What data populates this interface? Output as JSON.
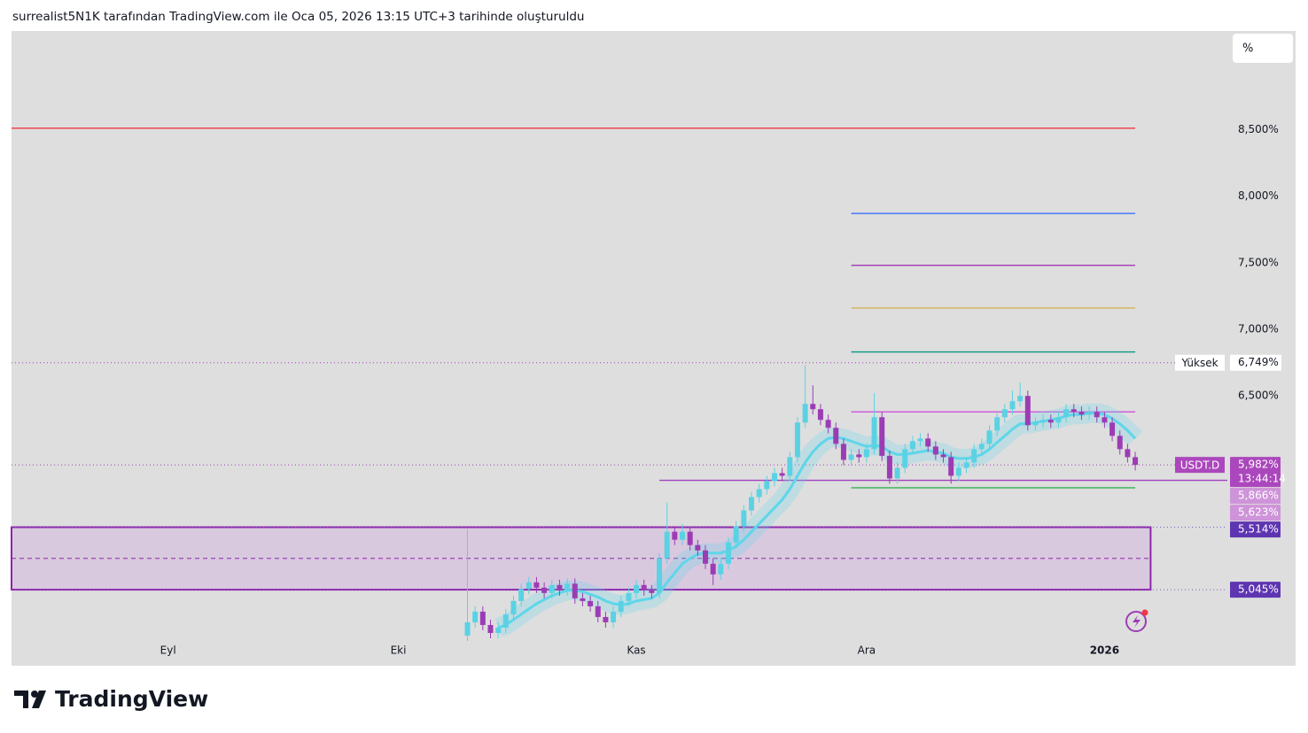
{
  "header": {
    "title": "surrealist5N1K tarafından TradingView.com ile Oca 05, 2026 13:15 UTC+3 tarihinde oluşturuldu"
  },
  "footer": {
    "brand": "TradingView"
  },
  "toolbar": {
    "scale_button": "%"
  },
  "chart_data": {
    "type": "candlestick",
    "symbol": "USDT.D",
    "up_color": "#5ad2e4",
    "down_color": "#9c3cb4",
    "xlim": [
      -20.4,
      138
    ],
    "ylim": [
      4.7,
      9.24
    ],
    "xticks": [
      {
        "value": 0,
        "label": "Eyl"
      },
      {
        "value": 30,
        "label": "Eki"
      },
      {
        "value": 61,
        "label": "Kas"
      },
      {
        "value": 91,
        "label": "Ara"
      },
      {
        "value": 122,
        "label": "2026"
      }
    ],
    "yticks": [
      {
        "value": 8.5,
        "label": "8,500%"
      },
      {
        "value": 8.0,
        "label": "8,000%"
      },
      {
        "value": 7.5,
        "label": "7,500%"
      },
      {
        "value": 7.0,
        "label": "7,000%"
      },
      {
        "value": 6.5,
        "label": "6,500%"
      }
    ],
    "x": [
      39,
      40,
      41,
      42,
      43,
      44,
      45,
      46,
      47,
      48,
      49,
      50,
      51,
      52,
      53,
      54,
      55,
      56,
      57,
      58,
      59,
      60,
      61,
      62,
      63,
      64,
      65,
      66,
      67,
      68,
      69,
      70,
      71,
      72,
      73,
      74,
      75,
      76,
      77,
      78,
      79,
      80,
      81,
      82,
      83,
      84,
      85,
      86,
      87,
      88,
      89,
      90,
      91,
      92,
      93,
      94,
      95,
      96,
      97,
      98,
      99,
      100,
      101,
      102,
      103,
      104,
      105,
      106,
      107,
      108,
      109,
      110,
      111,
      112,
      113,
      114,
      115,
      116,
      117,
      118,
      119,
      120,
      121,
      122,
      123,
      124,
      125,
      126
    ],
    "open": [
      4.7,
      4.8,
      4.88,
      4.78,
      4.72,
      4.76,
      4.86,
      4.96,
      5.05,
      5.1,
      5.06,
      5.02,
      5.08,
      5.04,
      5.09,
      4.98,
      4.96,
      4.92,
      4.84,
      4.8,
      4.88,
      4.96,
      5.02,
      5.08,
      5.04,
      5.02,
      5.28,
      5.48,
      5.42,
      5.48,
      5.38,
      5.34,
      5.24,
      5.16,
      5.24,
      5.4,
      5.52,
      5.64,
      5.74,
      5.8,
      5.86,
      5.92,
      5.9,
      6.04,
      6.3,
      6.44,
      6.4,
      6.32,
      6.26,
      6.14,
      6.02,
      6.06,
      6.04,
      6.1,
      6.34,
      6.05,
      5.88,
      5.96,
      6.1,
      6.16,
      6.18,
      6.12,
      6.06,
      6.04,
      5.9,
      5.96,
      6.0,
      6.1,
      6.14,
      6.24,
      6.34,
      6.4,
      6.46,
      6.5,
      6.28,
      6.3,
      6.32,
      6.3,
      6.34,
      6.4,
      6.38,
      6.36,
      6.38,
      6.34,
      6.3,
      6.2,
      6.1,
      6.04
    ],
    "high": [
      5.5,
      4.92,
      4.92,
      4.82,
      4.8,
      4.9,
      5.0,
      5.09,
      5.14,
      5.14,
      5.1,
      5.12,
      5.12,
      5.13,
      5.13,
      5.02,
      5.0,
      4.96,
      4.88,
      4.92,
      5.0,
      5.06,
      5.12,
      5.12,
      5.08,
      5.32,
      5.7,
      5.52,
      5.54,
      5.52,
      5.42,
      5.38,
      5.28,
      5.28,
      5.44,
      5.56,
      5.68,
      5.78,
      5.84,
      5.9,
      5.96,
      5.96,
      6.08,
      6.34,
      6.73,
      6.58,
      6.44,
      6.36,
      6.3,
      6.18,
      6.1,
      6.1,
      6.14,
      6.52,
      6.38,
      6.09,
      6.0,
      6.14,
      6.2,
      6.22,
      6.22,
      6.16,
      6.1,
      6.08,
      6.0,
      6.04,
      6.14,
      6.18,
      6.28,
      6.38,
      6.44,
      6.54,
      6.6,
      6.54,
      6.34,
      6.36,
      6.36,
      6.38,
      6.44,
      6.44,
      6.42,
      6.42,
      6.42,
      6.38,
      6.34,
      6.24,
      6.14,
      6.08
    ],
    "low": [
      4.66,
      4.76,
      4.74,
      4.68,
      4.68,
      4.72,
      4.82,
      4.92,
      5.01,
      5.02,
      4.98,
      4.98,
      5.0,
      5.0,
      4.94,
      4.92,
      4.88,
      4.8,
      4.76,
      4.76,
      4.84,
      4.92,
      4.98,
      5.0,
      4.98,
      4.98,
      5.24,
      5.38,
      5.38,
      5.34,
      5.3,
      5.2,
      5.08,
      5.12,
      5.2,
      5.36,
      5.48,
      5.6,
      5.7,
      5.76,
      5.82,
      5.86,
      5.86,
      6.0,
      6.26,
      6.36,
      6.28,
      6.22,
      6.1,
      5.98,
      5.98,
      6.0,
      6.0,
      6.06,
      6.01,
      5.84,
      5.84,
      5.92,
      6.06,
      6.12,
      6.08,
      6.02,
      6.0,
      5.84,
      5.86,
      5.92,
      5.96,
      6.06,
      6.1,
      6.2,
      6.3,
      6.36,
      6.42,
      6.24,
      6.24,
      6.26,
      6.26,
      6.26,
      6.3,
      6.34,
      6.32,
      6.32,
      6.3,
      6.26,
      6.16,
      6.06,
      6.0,
      5.94
    ],
    "close": [
      4.8,
      4.88,
      4.78,
      4.72,
      4.76,
      4.86,
      4.96,
      5.05,
      5.1,
      5.06,
      5.02,
      5.08,
      5.04,
      5.09,
      4.98,
      4.96,
      4.92,
      4.84,
      4.8,
      4.88,
      4.96,
      5.02,
      5.08,
      5.04,
      5.02,
      5.28,
      5.48,
      5.42,
      5.48,
      5.38,
      5.34,
      5.24,
      5.16,
      5.24,
      5.4,
      5.52,
      5.64,
      5.74,
      5.8,
      5.86,
      5.92,
      5.9,
      6.04,
      6.3,
      6.44,
      6.4,
      6.32,
      6.26,
      6.14,
      6.02,
      6.06,
      6.04,
      6.1,
      6.34,
      6.05,
      5.88,
      5.96,
      6.1,
      6.16,
      6.18,
      6.12,
      6.06,
      6.04,
      5.9,
      5.96,
      6.0,
      6.1,
      6.14,
      6.24,
      6.34,
      6.4,
      6.46,
      6.5,
      6.28,
      6.3,
      6.32,
      6.3,
      6.34,
      6.4,
      6.38,
      6.36,
      6.38,
      6.34,
      6.3,
      6.2,
      6.1,
      6.04,
      5.982
    ],
    "ma": {
      "color": "#5ed6ea",
      "values": [
        null,
        null,
        null,
        null,
        4.76,
        4.78,
        4.82,
        4.86,
        4.9,
        4.94,
        4.97,
        5.0,
        5.02,
        5.04,
        5.04,
        5.03,
        5.01,
        4.99,
        4.96,
        4.94,
        4.93,
        4.94,
        4.96,
        4.97,
        4.98,
        5.02,
        5.1,
        5.17,
        5.24,
        5.28,
        5.31,
        5.32,
        5.32,
        5.32,
        5.34,
        5.37,
        5.42,
        5.48,
        5.54,
        5.6,
        5.66,
        5.72,
        5.8,
        5.9,
        6.0,
        6.08,
        6.14,
        6.18,
        6.19,
        6.18,
        6.16,
        6.14,
        6.12,
        6.13,
        6.12,
        6.08,
        6.06,
        6.06,
        6.07,
        6.08,
        6.09,
        6.08,
        6.07,
        6.04,
        6.03,
        6.03,
        6.04,
        6.06,
        6.1,
        6.15,
        6.2,
        6.25,
        6.29,
        6.29,
        6.3,
        6.31,
        6.32,
        6.33,
        6.35,
        6.36,
        6.36,
        6.37,
        6.37,
        6.36,
        6.33,
        6.29,
        6.24,
        6.18
      ]
    },
    "levels": [
      {
        "value": 8.51,
        "color": "#f23645",
        "from": -20.4,
        "to": 126
      },
      {
        "value": 7.87,
        "color": "#2962ff",
        "from": 89,
        "to": 126
      },
      {
        "value": 7.48,
        "color": "#9c27b0",
        "from": 89,
        "to": 126
      },
      {
        "value": 7.16,
        "color": "#d4b35a",
        "from": 89,
        "to": 126
      },
      {
        "value": 6.83,
        "color": "#089981",
        "from": 89,
        "to": 126
      },
      {
        "value": 6.38,
        "color": "#cc44dd",
        "from": 89,
        "to": 126
      },
      {
        "value": 5.81,
        "color": "#22aa44",
        "from": 89,
        "to": 126
      },
      {
        "value": 5.866,
        "color": "#a040c0",
        "from": 64,
        "to": 138
      }
    ],
    "zone": {
      "top": 5.514,
      "bottom": 5.045,
      "mid": 5.28,
      "from": -20.4,
      "to": 128
    },
    "price_labels": [
      {
        "value": 6.749,
        "label": "6,749%",
        "tag": "Yüksek",
        "style": "high"
      },
      {
        "value": 5.982,
        "label": "5,982%",
        "tag": "USDT.D",
        "countdown": "13:44:14",
        "style": "last"
      },
      {
        "value": 5.866,
        "label": "5,866%",
        "style": "light"
      },
      {
        "value": 5.623,
        "label": "5,623%",
        "style": "light"
      },
      {
        "value": 5.514,
        "label": "5,514%",
        "style": "dark"
      },
      {
        "value": 5.045,
        "label": "5,045%",
        "style": "dark"
      }
    ]
  }
}
